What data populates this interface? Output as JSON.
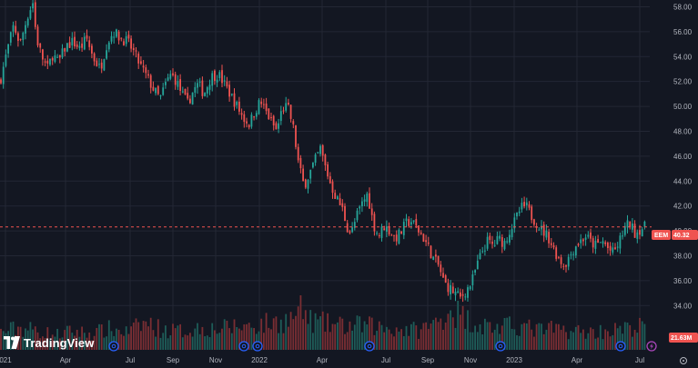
{
  "app": {
    "brand": "TradingView"
  },
  "chart_data": {
    "type": "candlestick",
    "symbol": "EEM",
    "last_price_label": "40.32",
    "last_price": 40.32,
    "volume_label": "21.63M",
    "y_ticks": [
      "58.00",
      "56.00",
      "54.00",
      "52.00",
      "50.00",
      "48.00",
      "46.00",
      "44.00",
      "42.00",
      "40.00",
      "38.00",
      "36.00",
      "34.00"
    ],
    "y_range": [
      33.0,
      58.4
    ],
    "x_ticks": [
      {
        "label": "021",
        "x": 6
      },
      {
        "label": "Apr",
        "x": 72
      },
      {
        "label": "Jul",
        "x": 143
      },
      {
        "label": "Sep",
        "x": 190
      },
      {
        "label": "Nov",
        "x": 237
      },
      {
        "label": "2022",
        "x": 285
      },
      {
        "label": "Apr",
        "x": 354
      },
      {
        "label": "Jul",
        "x": 424
      },
      {
        "label": "Sep",
        "x": 470
      },
      {
        "label": "Nov",
        "x": 517
      },
      {
        "label": "2023",
        "x": 565
      },
      {
        "label": "Apr",
        "x": 634
      },
      {
        "label": "Jul",
        "x": 703
      }
    ],
    "price_path": [
      [
        0,
        52.0
      ],
      [
        8,
        54.5
      ],
      [
        15,
        56.5
      ],
      [
        22,
        55.0
      ],
      [
        30,
        57.2
      ],
      [
        36,
        58.4
      ],
      [
        40,
        55.5
      ],
      [
        46,
        54.0
      ],
      [
        52,
        53.0
      ],
      [
        58,
        54.2
      ],
      [
        64,
        53.5
      ],
      [
        72,
        54.8
      ],
      [
        80,
        55.2
      ],
      [
        88,
        54.6
      ],
      [
        95,
        55.5
      ],
      [
        102,
        54.0
      ],
      [
        110,
        53.0
      ],
      [
        118,
        55.2
      ],
      [
        125,
        56.0
      ],
      [
        132,
        55.5
      ],
      [
        140,
        55.2
      ],
      [
        146,
        54.5
      ],
      [
        152,
        53.6
      ],
      [
        158,
        52.8
      ],
      [
        164,
        52.0
      ],
      [
        170,
        51.2
      ],
      [
        176,
        50.6
      ],
      [
        182,
        51.8
      ],
      [
        188,
        52.6
      ],
      [
        194,
        52.0
      ],
      [
        200,
        51.0
      ],
      [
        206,
        50.2
      ],
      [
        212,
        51.2
      ],
      [
        218,
        51.8
      ],
      [
        224,
        51.0
      ],
      [
        232,
        52.4
      ],
      [
        240,
        52.6
      ],
      [
        248,
        51.6
      ],
      [
        256,
        50.6
      ],
      [
        262,
        49.8
      ],
      [
        268,
        49.0
      ],
      [
        274,
        48.6
      ],
      [
        280,
        49.6
      ],
      [
        286,
        50.4
      ],
      [
        292,
        49.6
      ],
      [
        298,
        48.8
      ],
      [
        304,
        48.0
      ],
      [
        310,
        49.8
      ],
      [
        316,
        50.0
      ],
      [
        322,
        48.4
      ],
      [
        328,
        45.4
      ],
      [
        334,
        43.6
      ],
      [
        340,
        44.6
      ],
      [
        346,
        45.6
      ],
      [
        352,
        46.6
      ],
      [
        358,
        45.0
      ],
      [
        364,
        43.6
      ],
      [
        370,
        42.6
      ],
      [
        376,
        41.8
      ],
      [
        382,
        40.2
      ],
      [
        386,
        39.8
      ],
      [
        392,
        41.2
      ],
      [
        398,
        42.2
      ],
      [
        404,
        43.0
      ],
      [
        410,
        40.6
      ],
      [
        416,
        39.6
      ],
      [
        422,
        40.4
      ],
      [
        428,
        40.0
      ],
      [
        434,
        39.4
      ],
      [
        440,
        39.8
      ],
      [
        446,
        40.6
      ],
      [
        452,
        40.8
      ],
      [
        458,
        40.2
      ],
      [
        464,
        39.6
      ],
      [
        470,
        38.8
      ],
      [
        476,
        37.8
      ],
      [
        482,
        37.2
      ],
      [
        488,
        35.8
      ],
      [
        494,
        35.4
      ],
      [
        500,
        35.0
      ],
      [
        506,
        34.6
      ],
      [
        512,
        35.2
      ],
      [
        518,
        35.8
      ],
      [
        524,
        37.2
      ],
      [
        530,
        38.4
      ],
      [
        536,
        39.2
      ],
      [
        542,
        38.8
      ],
      [
        548,
        39.4
      ],
      [
        554,
        39.0
      ],
      [
        560,
        40.0
      ],
      [
        566,
        40.8
      ],
      [
        572,
        41.8
      ],
      [
        578,
        42.0
      ],
      [
        584,
        41.2
      ],
      [
        590,
        40.6
      ],
      [
        596,
        40.0
      ],
      [
        602,
        39.6
      ],
      [
        608,
        38.6
      ],
      [
        614,
        37.8
      ],
      [
        620,
        37.2
      ],
      [
        626,
        38.0
      ],
      [
        632,
        38.8
      ],
      [
        638,
        39.2
      ],
      [
        644,
        39.6
      ],
      [
        650,
        39.0
      ],
      [
        656,
        38.8
      ],
      [
        662,
        39.2
      ],
      [
        668,
        38.6
      ],
      [
        674,
        38.2
      ],
      [
        680,
        39.0
      ],
      [
        686,
        40.2
      ],
      [
        692,
        40.6
      ],
      [
        698,
        39.8
      ],
      [
        704,
        40.2
      ],
      [
        710,
        40.32
      ]
    ],
    "volume_path": [
      [
        0,
        0.35
      ],
      [
        20,
        0.45
      ],
      [
        40,
        0.4
      ],
      [
        60,
        0.3
      ],
      [
        80,
        0.38
      ],
      [
        100,
        0.33
      ],
      [
        120,
        0.42
      ],
      [
        140,
        0.36
      ],
      [
        160,
        0.55
      ],
      [
        180,
        0.4
      ],
      [
        200,
        0.38
      ],
      [
        220,
        0.45
      ],
      [
        240,
        0.42
      ],
      [
        260,
        0.48
      ],
      [
        280,
        0.5
      ],
      [
        300,
        0.55
      ],
      [
        320,
        0.62
      ],
      [
        330,
        0.85
      ],
      [
        340,
        0.6
      ],
      [
        360,
        0.52
      ],
      [
        380,
        0.48
      ],
      [
        400,
        0.5
      ],
      [
        420,
        0.45
      ],
      [
        440,
        0.42
      ],
      [
        460,
        0.4
      ],
      [
        480,
        0.55
      ],
      [
        495,
        0.85
      ],
      [
        510,
        0.65
      ],
      [
        530,
        0.5
      ],
      [
        550,
        0.45
      ],
      [
        570,
        0.5
      ],
      [
        590,
        0.4
      ],
      [
        610,
        0.42
      ],
      [
        630,
        0.38
      ],
      [
        650,
        0.36
      ],
      [
        670,
        0.4
      ],
      [
        690,
        0.42
      ],
      [
        710,
        0.5
      ]
    ],
    "event_markers": [
      {
        "x": 125,
        "kind": "dividend"
      },
      {
        "x": 268,
        "kind": "dividend"
      },
      {
        "x": 283,
        "kind": "dividend"
      },
      {
        "x": 406,
        "kind": "dividend"
      },
      {
        "x": 550,
        "kind": "dividend"
      },
      {
        "x": 682,
        "kind": "dividend"
      },
      {
        "x": 716,
        "kind": "split"
      }
    ],
    "colors": {
      "background": "#131722",
      "grid": "#232734",
      "up": "#26a69a",
      "down": "#ef5350",
      "up_volume": "#1e5c58",
      "down_volume": "#7a2e33",
      "price_line": "#ef5350",
      "marker_blue": "#2962ff",
      "marker_purple": "#ab47bc"
    }
  }
}
